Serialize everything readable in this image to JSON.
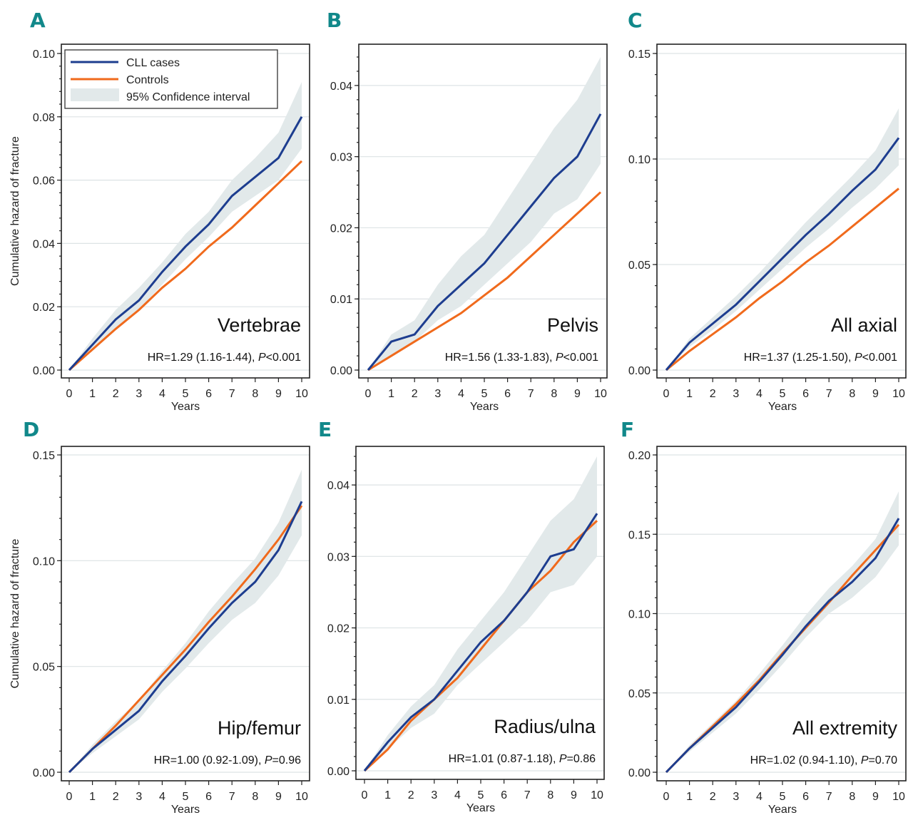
{
  "colors": {
    "cll": "#1d3d8f",
    "controls": "#f06a1c",
    "ci": "#e2e9ea",
    "panel_letter": "#11888a"
  },
  "legend": {
    "cll": "CLL cases",
    "controls": "Controls",
    "ci": "95% Confidence interval"
  },
  "chart_data": [
    {
      "type": "line",
      "panel": "A",
      "site": "Vertebrae",
      "hr_text": "HR=1.29 (1.16-1.44), ",
      "p_label": "P",
      "p_text": "<0.001",
      "xlabel": "Years",
      "ylabel": "Cumulative hazard of fracture",
      "xlim": [
        0,
        10
      ],
      "ylim": [
        0,
        0.1
      ],
      "yticks": [
        "0.00",
        "0.02",
        "0.04",
        "0.06",
        "0.08",
        "0.10"
      ],
      "xticks": [
        "0",
        "1",
        "2",
        "3",
        "4",
        "5",
        "6",
        "7",
        "8",
        "9",
        "10"
      ],
      "x": [
        0,
        1,
        2,
        3,
        4,
        5,
        6,
        7,
        8,
        9,
        10
      ],
      "series": [
        {
          "name": "CLL cases",
          "values": [
            0,
            0.008,
            0.016,
            0.022,
            0.031,
            0.039,
            0.046,
            0.055,
            0.061,
            0.067,
            0.08
          ]
        },
        {
          "name": "Controls",
          "values": [
            0,
            0.0065,
            0.013,
            0.019,
            0.026,
            0.032,
            0.039,
            0.045,
            0.052,
            0.059,
            0.066
          ]
        }
      ],
      "ci_upper": [
        0,
        0.01,
        0.019,
        0.026,
        0.034,
        0.043,
        0.05,
        0.06,
        0.067,
        0.075,
        0.091
      ],
      "ci_lower": [
        0,
        0.006,
        0.013,
        0.019,
        0.027,
        0.035,
        0.042,
        0.05,
        0.055,
        0.06,
        0.07
      ]
    },
    {
      "type": "line",
      "panel": "B",
      "site": "Pelvis",
      "hr_text": "HR=1.56 (1.33-1.83), ",
      "p_label": "P",
      "p_text": "<0.001",
      "xlabel": "Years",
      "ylabel": "",
      "xlim": [
        0,
        10
      ],
      "ylim": [
        0,
        0.045
      ],
      "yticks": [
        "0.00",
        "0.01",
        "0.02",
        "0.03",
        "0.04"
      ],
      "xticks": [
        "0",
        "1",
        "2",
        "3",
        "4",
        "5",
        "6",
        "7",
        "8",
        "9",
        "10"
      ],
      "x": [
        0,
        1,
        2,
        3,
        4,
        5,
        6,
        7,
        8,
        9,
        10
      ],
      "series": [
        {
          "name": "CLL cases",
          "values": [
            0,
            0.004,
            0.005,
            0.009,
            0.012,
            0.015,
            0.019,
            0.023,
            0.027,
            0.03,
            0.036
          ]
        },
        {
          "name": "Controls",
          "values": [
            0,
            0.002,
            0.004,
            0.006,
            0.008,
            0.0105,
            0.013,
            0.016,
            0.019,
            0.022,
            0.025
          ]
        }
      ],
      "ci_upper": [
        0,
        0.005,
        0.007,
        0.012,
        0.016,
        0.019,
        0.024,
        0.029,
        0.034,
        0.038,
        0.044
      ],
      "ci_lower": [
        0,
        0.002,
        0.004,
        0.007,
        0.009,
        0.012,
        0.015,
        0.018,
        0.022,
        0.024,
        0.029
      ]
    },
    {
      "type": "line",
      "panel": "C",
      "site": "All axial",
      "hr_text": "HR=1.37 (1.25-1.50), ",
      "p_label": "P",
      "p_text": "<0.001",
      "xlabel": "Years",
      "ylabel": "",
      "xlim": [
        0,
        10
      ],
      "ylim": [
        0,
        0.15
      ],
      "yticks": [
        "0.00",
        "0.05",
        "0.10",
        "0.15"
      ],
      "xticks": [
        "0",
        "1",
        "2",
        "3",
        "4",
        "5",
        "6",
        "7",
        "8",
        "9",
        "10"
      ],
      "x": [
        0,
        1,
        2,
        3,
        4,
        5,
        6,
        7,
        8,
        9,
        10
      ],
      "series": [
        {
          "name": "CLL cases",
          "values": [
            0,
            0.013,
            0.022,
            0.031,
            0.042,
            0.053,
            0.064,
            0.074,
            0.085,
            0.095,
            0.11
          ]
        },
        {
          "name": "Controls",
          "values": [
            0,
            0.009,
            0.017,
            0.025,
            0.034,
            0.042,
            0.051,
            0.059,
            0.068,
            0.077,
            0.086
          ]
        }
      ],
      "ci_upper": [
        0,
        0.015,
        0.025,
        0.035,
        0.046,
        0.058,
        0.07,
        0.081,
        0.092,
        0.104,
        0.124
      ],
      "ci_lower": [
        0,
        0.011,
        0.019,
        0.028,
        0.038,
        0.048,
        0.058,
        0.067,
        0.077,
        0.086,
        0.097
      ]
    },
    {
      "type": "line",
      "panel": "D",
      "site": "Hip/femur",
      "hr_text": "HR=1.00 (0.92-1.09), ",
      "p_label": "P",
      "p_text": "=0.96",
      "xlabel": "Years",
      "ylabel": "Cumulative hazard of fracture",
      "xlim": [
        0,
        10
      ],
      "ylim": [
        0,
        0.15
      ],
      "yticks": [
        "0.00",
        "0.05",
        "0.10",
        "0.15"
      ],
      "xticks": [
        "0",
        "1",
        "2",
        "3",
        "4",
        "5",
        "6",
        "7",
        "8",
        "9",
        "10"
      ],
      "x": [
        0,
        1,
        2,
        3,
        4,
        5,
        6,
        7,
        8,
        9,
        10
      ],
      "series": [
        {
          "name": "CLL cases",
          "values": [
            0,
            0.011,
            0.02,
            0.029,
            0.043,
            0.055,
            0.068,
            0.08,
            0.09,
            0.105,
            0.128
          ]
        },
        {
          "name": "Controls",
          "values": [
            0,
            0.011,
            0.022,
            0.034,
            0.046,
            0.058,
            0.071,
            0.083,
            0.096,
            0.11,
            0.126
          ]
        }
      ],
      "ci_upper": [
        0,
        0.013,
        0.024,
        0.034,
        0.048,
        0.061,
        0.076,
        0.089,
        0.101,
        0.118,
        0.143
      ],
      "ci_lower": [
        0,
        0.009,
        0.017,
        0.025,
        0.038,
        0.049,
        0.061,
        0.072,
        0.08,
        0.093,
        0.112
      ]
    },
    {
      "type": "line",
      "panel": "E",
      "site": "Radius/ulna",
      "hr_text": "HR=1.01 (0.87-1.18), ",
      "p_label": "P",
      "p_text": "=0.86",
      "xlabel": "Years",
      "ylabel": "",
      "xlim": [
        0,
        10
      ],
      "ylim": [
        0,
        0.045
      ],
      "yticks": [
        "0.00",
        "0.01",
        "0.02",
        "0.03",
        "0.04"
      ],
      "xticks": [
        "0",
        "1",
        "2",
        "3",
        "4",
        "5",
        "6",
        "7",
        "8",
        "9",
        "10"
      ],
      "x": [
        0,
        1,
        2,
        3,
        4,
        5,
        6,
        7,
        8,
        9,
        10
      ],
      "series": [
        {
          "name": "CLL cases",
          "values": [
            0,
            0.004,
            0.0075,
            0.01,
            0.014,
            0.018,
            0.021,
            0.025,
            0.03,
            0.031,
            0.036
          ]
        },
        {
          "name": "Controls",
          "values": [
            0,
            0.003,
            0.007,
            0.01,
            0.013,
            0.017,
            0.021,
            0.025,
            0.028,
            0.032,
            0.035
          ]
        }
      ],
      "ci_upper": [
        0,
        0.005,
        0.009,
        0.012,
        0.017,
        0.021,
        0.025,
        0.03,
        0.035,
        0.038,
        0.044
      ],
      "ci_lower": [
        0,
        0.003,
        0.006,
        0.008,
        0.012,
        0.015,
        0.018,
        0.021,
        0.025,
        0.026,
        0.03
      ]
    },
    {
      "type": "line",
      "panel": "F",
      "site": "All extremity",
      "hr_text": "HR=1.02 (0.94-1.10), ",
      "p_label": "P",
      "p_text": "=0.70",
      "xlabel": "Years",
      "ylabel": "",
      "xlim": [
        0,
        10
      ],
      "ylim": [
        0,
        0.2
      ],
      "yticks": [
        "0.00",
        "0.05",
        "0.10",
        "0.15",
        "0.20"
      ],
      "xticks": [
        "0",
        "1",
        "2",
        "3",
        "4",
        "5",
        "6",
        "7",
        "8",
        "9",
        "10"
      ],
      "x": [
        0,
        1,
        2,
        3,
        4,
        5,
        6,
        7,
        8,
        9,
        10
      ],
      "series": [
        {
          "name": "CLL cases",
          "values": [
            0,
            0.015,
            0.028,
            0.041,
            0.057,
            0.074,
            0.092,
            0.108,
            0.12,
            0.135,
            0.16
          ]
        },
        {
          "name": "Controls",
          "values": [
            0,
            0.015,
            0.029,
            0.043,
            0.058,
            0.075,
            0.091,
            0.107,
            0.124,
            0.14,
            0.156
          ]
        }
      ],
      "ci_upper": [
        0,
        0.017,
        0.031,
        0.045,
        0.062,
        0.08,
        0.099,
        0.116,
        0.13,
        0.147,
        0.177
      ],
      "ci_lower": [
        0,
        0.013,
        0.025,
        0.037,
        0.052,
        0.068,
        0.085,
        0.1,
        0.11,
        0.123,
        0.143
      ]
    }
  ]
}
